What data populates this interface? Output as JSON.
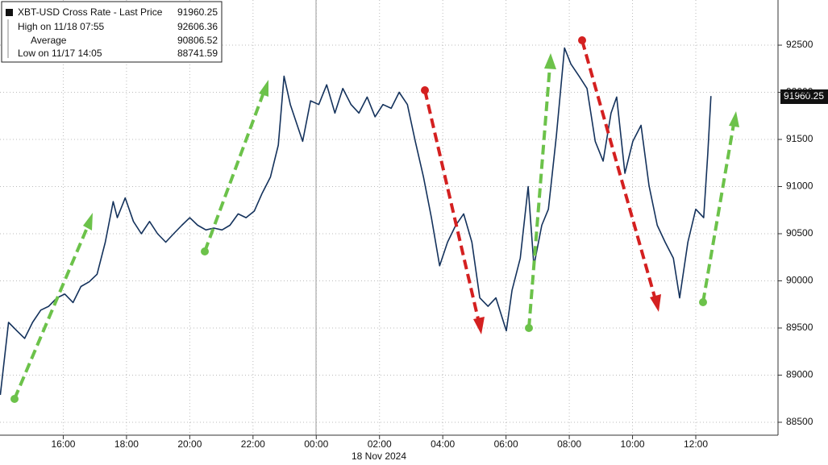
{
  "chart_data": {
    "type": "line",
    "xlabel": "18 Nov 2024",
    "legend": [
      {
        "label": "XBT-USD Cross Rate - Last Price",
        "value": 91960.25
      },
      {
        "label": "High on 11/18 07:55",
        "value": 92606.36
      },
      {
        "label": "Average",
        "value": 90806.52
      },
      {
        "label": "Low on 11/17 14:05",
        "value": 88741.59
      }
    ],
    "legend_position": "upper left",
    "grid": true,
    "xlim": [
      -10,
      14.6
    ],
    "ylim": [
      88363,
      92979
    ],
    "xticks": [
      {
        "value": -8,
        "label": "16:00"
      },
      {
        "value": -6,
        "label": "18:00"
      },
      {
        "value": -4,
        "label": "20:00"
      },
      {
        "value": -2,
        "label": "22:00"
      },
      {
        "value": 0,
        "label": "00:00"
      },
      {
        "value": 2,
        "label": "02:00"
      },
      {
        "value": 4,
        "label": "04:00"
      },
      {
        "value": 6,
        "label": "06:00"
      },
      {
        "value": 8,
        "label": "08:00"
      },
      {
        "value": 10,
        "label": "10:00"
      },
      {
        "value": 12,
        "label": "12:00"
      }
    ],
    "yticks": [
      88500,
      89000,
      89500,
      90000,
      90500,
      91000,
      91500,
      92000,
      92500
    ],
    "x": [
      -9.99,
      -9.73,
      -9.48,
      -9.22,
      -8.97,
      -8.71,
      -8.46,
      -8.2,
      -7.95,
      -7.69,
      -7.44,
      -7.18,
      -6.93,
      -6.67,
      -6.42,
      -6.29,
      -6.04,
      -5.78,
      -5.53,
      -5.27,
      -5.02,
      -4.76,
      -4.51,
      -4.25,
      -4.0,
      -3.75,
      -3.49,
      -3.24,
      -2.98,
      -2.73,
      -2.47,
      -2.22,
      -1.96,
      -1.71,
      -1.45,
      -1.2,
      -1.02,
      -0.82,
      -0.56,
      -0.43,
      -0.18,
      0.08,
      0.33,
      0.59,
      0.84,
      1.1,
      1.35,
      1.61,
      1.86,
      2.11,
      2.37,
      2.62,
      2.88,
      3.13,
      3.39,
      3.64,
      3.9,
      4.15,
      4.41,
      4.66,
      4.92,
      5.17,
      5.43,
      5.68,
      6.01,
      6.19,
      6.45,
      6.7,
      6.88,
      7.13,
      7.34,
      7.59,
      7.85,
      8.05,
      8.31,
      8.56,
      8.82,
      9.07,
      9.32,
      9.5,
      9.76,
      10.01,
      10.27,
      10.52,
      10.78,
      11.03,
      11.29,
      11.49,
      11.75,
      12.0,
      12.25,
      12.38,
      12.48
    ],
    "series": [
      {
        "name": "XBT-USD Cross Rate - Last Price",
        "color": "#14325c",
        "values": [
          88790,
          89560,
          89475,
          89390,
          89560,
          89690,
          89730,
          89820,
          89860,
          89770,
          89940,
          89990,
          90070,
          90410,
          90840,
          90670,
          90880,
          90630,
          90500,
          90630,
          90500,
          90410,
          90500,
          90590,
          90670,
          90590,
          90540,
          90560,
          90540,
          90590,
          90710,
          90670,
          90740,
          90930,
          91100,
          91440,
          92170,
          91870,
          91610,
          91480,
          91910,
          91870,
          92080,
          91780,
          92040,
          91870,
          91780,
          91950,
          91740,
          91870,
          91830,
          92000,
          91870,
          91480,
          91100,
          90670,
          90160,
          90410,
          90590,
          90710,
          90410,
          89820,
          89730,
          89820,
          89470,
          89900,
          90240,
          91000,
          90160,
          90590,
          90760,
          91530,
          92470,
          92300,
          92170,
          92040,
          91480,
          91270,
          91780,
          91950,
          91140,
          91480,
          91650,
          91010,
          90590,
          90410,
          90240,
          89820,
          90410,
          90760,
          90670,
          91350,
          91960.25
        ]
      }
    ]
  }
}
